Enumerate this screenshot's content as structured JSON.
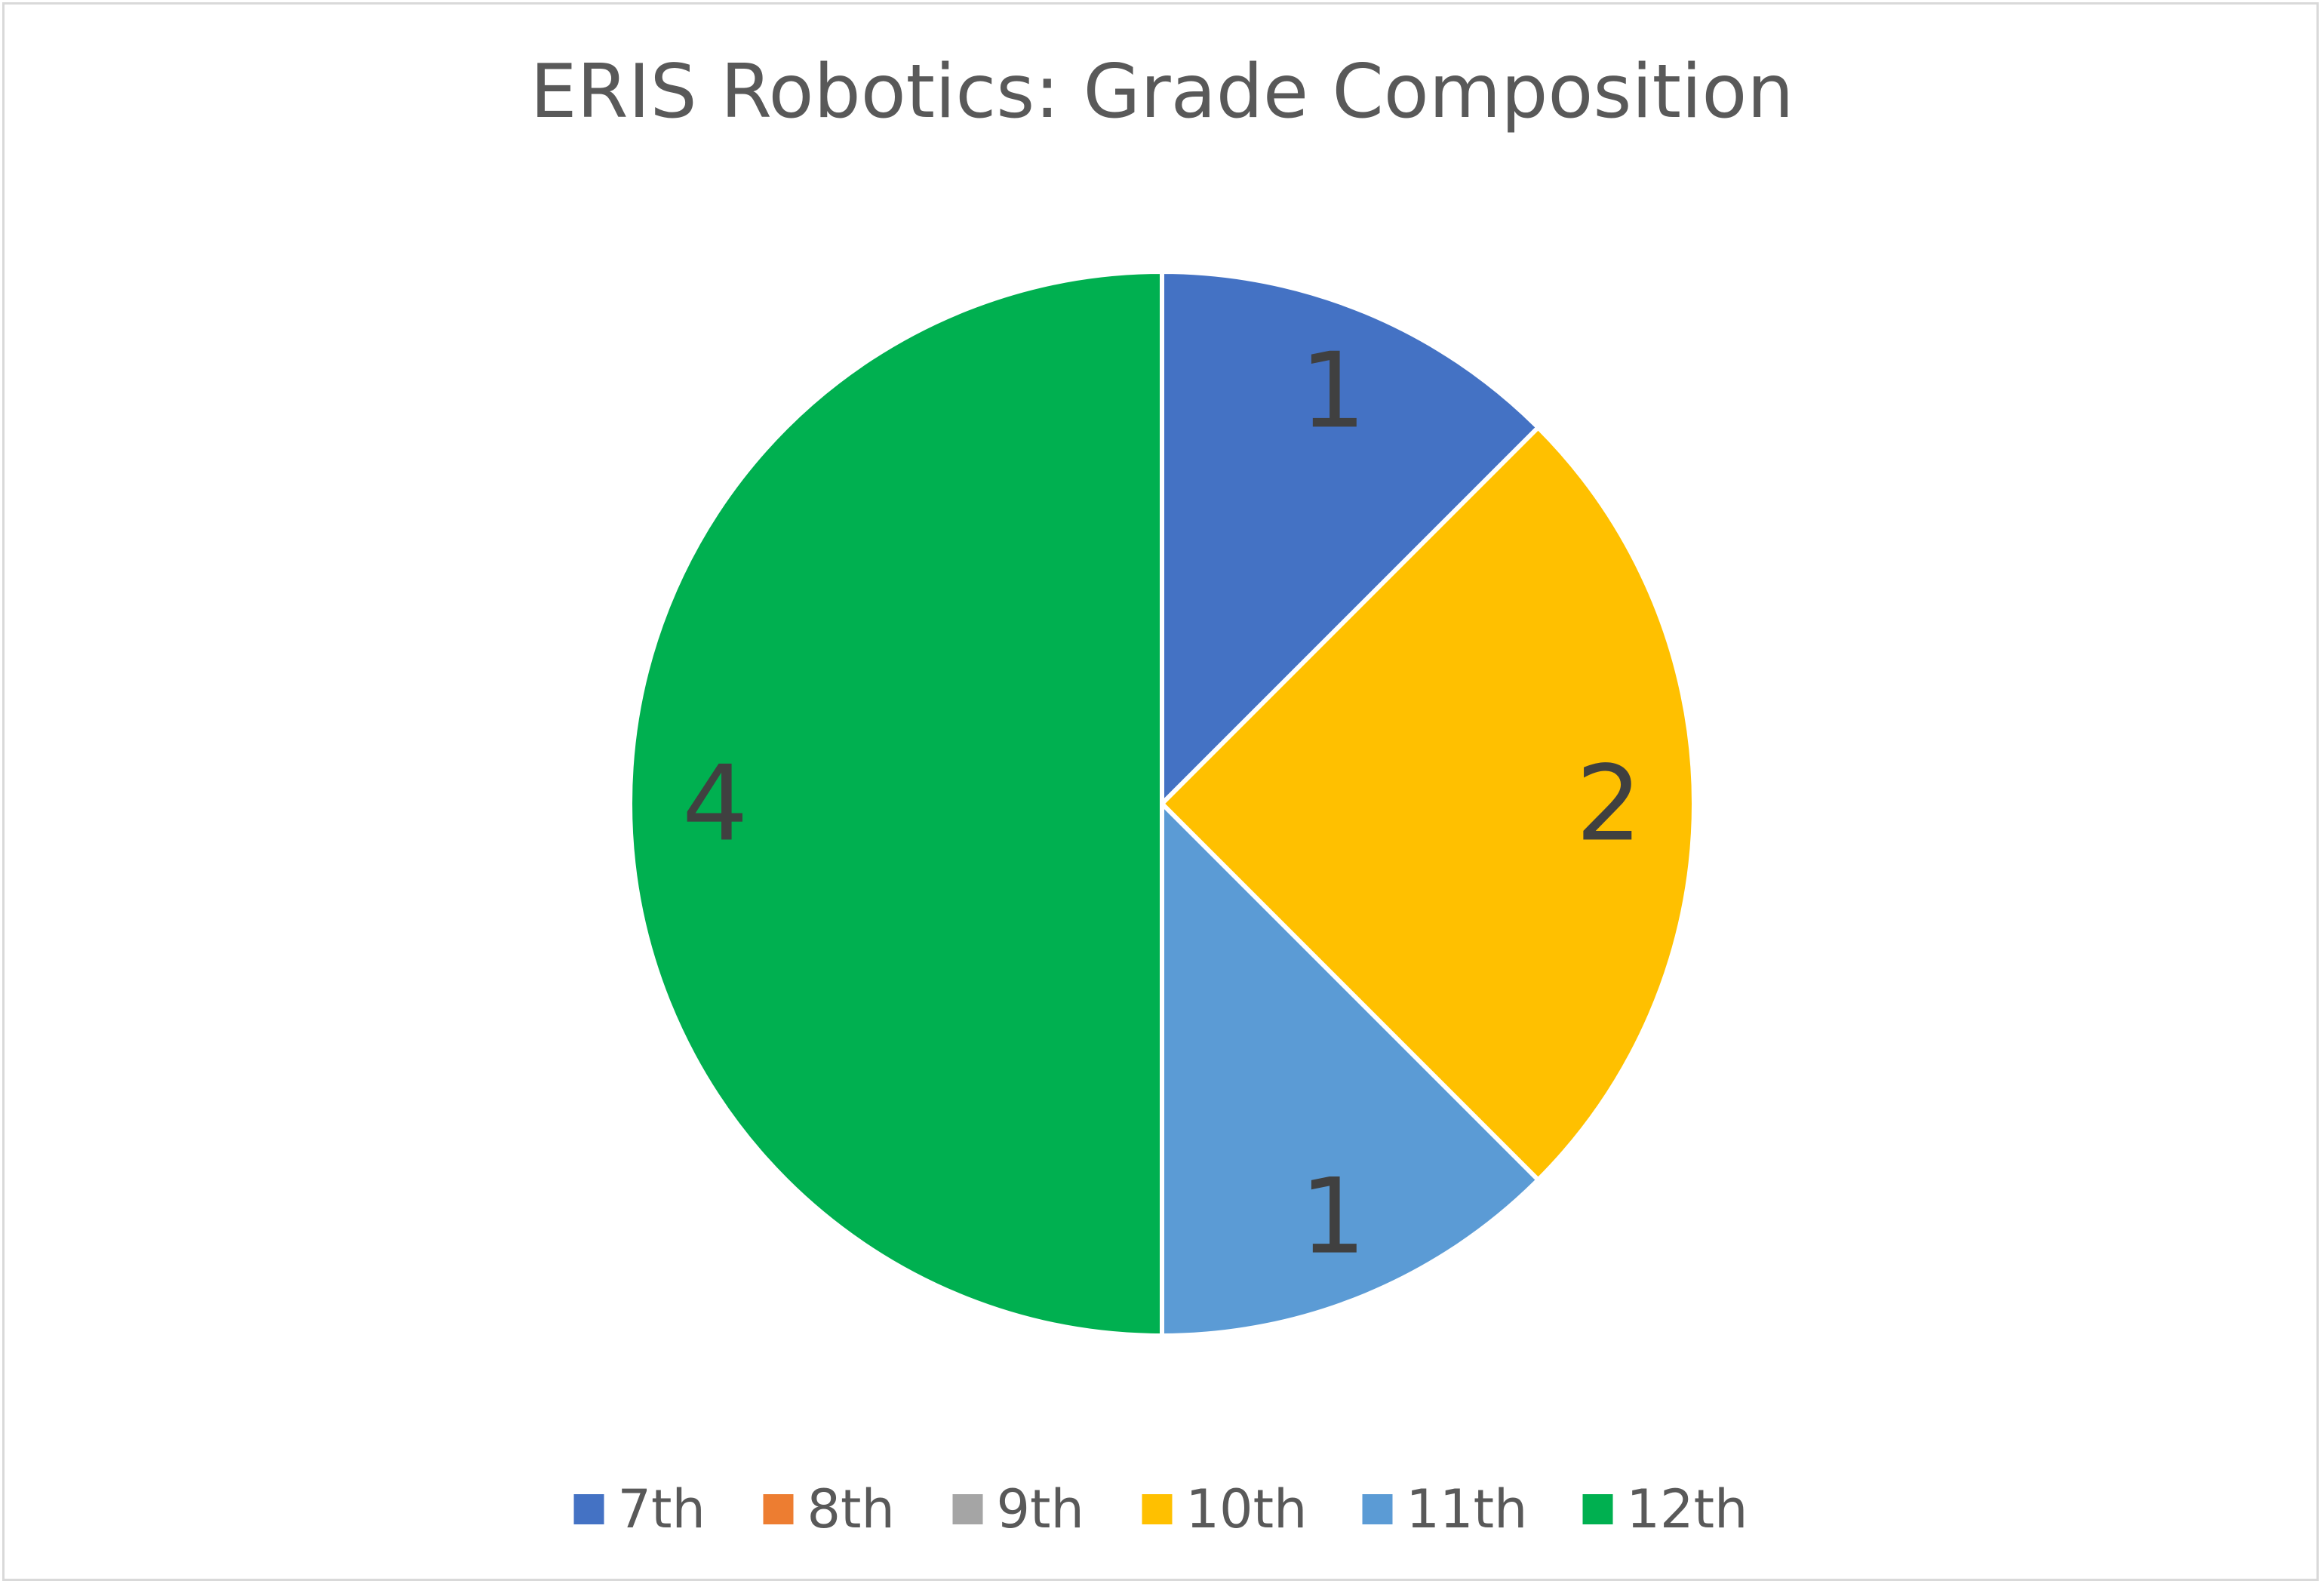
{
  "chart_data": {
    "type": "pie",
    "title": "ERIS Robotics: Grade Composition",
    "categories": [
      "7th",
      "8th",
      "9th",
      "10th",
      "11th",
      "12th"
    ],
    "values": [
      1,
      0,
      0,
      2,
      1,
      4
    ],
    "colors": [
      "#4472C4",
      "#ED7D31",
      "#A5A5A5",
      "#FFC000",
      "#5B9BD5",
      "#00B050"
    ],
    "data_labels": [
      "1",
      "",
      "",
      "2",
      "1",
      "4"
    ],
    "legend": "bottom",
    "start_angle_deg": 0,
    "direction": "clockwise"
  }
}
